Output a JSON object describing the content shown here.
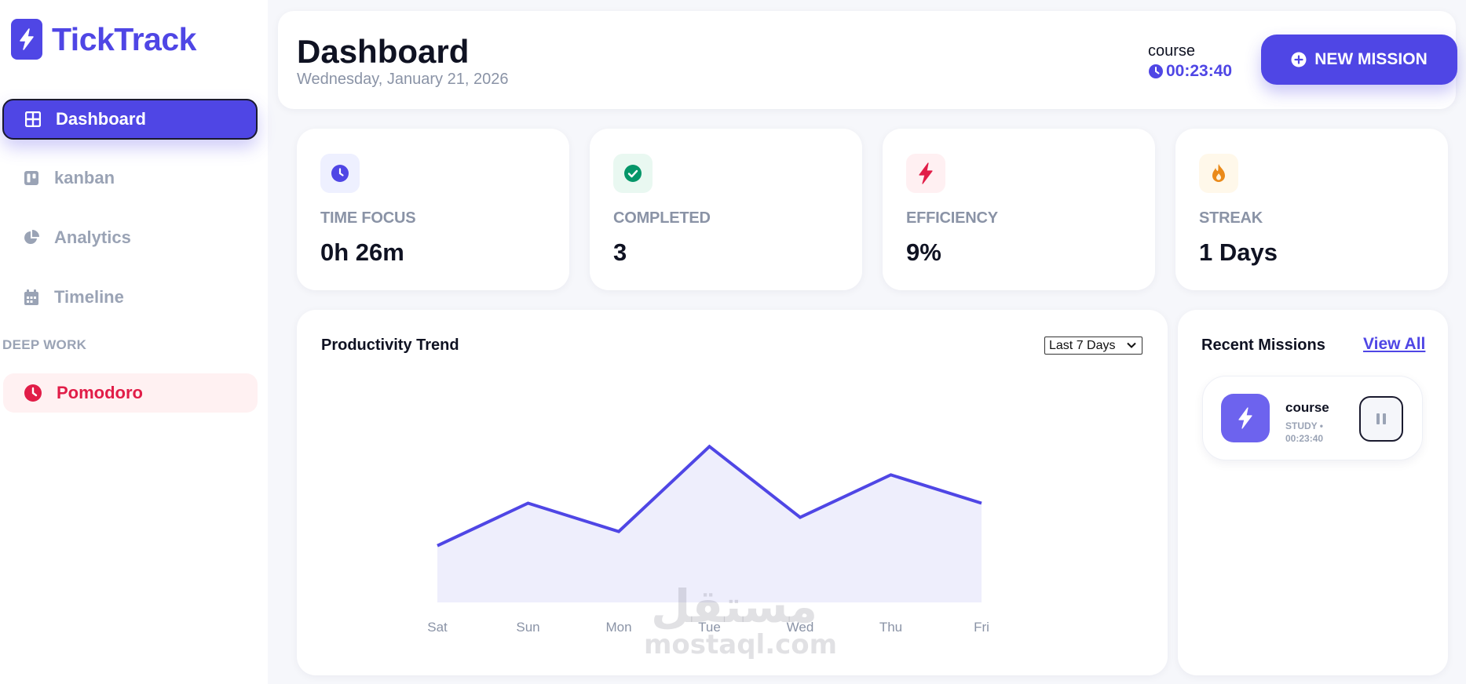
{
  "app": {
    "name": "TickTrack"
  },
  "sidebar": {
    "items": [
      {
        "label": "Dashboard",
        "icon": "grid-icon",
        "active": true
      },
      {
        "label": "kanban",
        "icon": "kanban-icon"
      },
      {
        "label": "Analytics",
        "icon": "pie-chart-icon"
      },
      {
        "label": "Timeline",
        "icon": "calendar-icon"
      }
    ],
    "section_label": "DEEP WORK",
    "pomodoro": {
      "label": "Pomodoro",
      "icon": "clock-icon",
      "color": "#e11d48"
    }
  },
  "header": {
    "title": "Dashboard",
    "date": "Wednesday, January 21, 2026",
    "active_timer": {
      "label": "course",
      "time": "00:23:40"
    },
    "new_mission_label": "NEW MISSION"
  },
  "stats": [
    {
      "label": "TIME FOCUS",
      "value": "0h 26m",
      "icon": "clock-icon",
      "color": "#4f46e5",
      "bg": "#eef0ff"
    },
    {
      "label": "COMPLETED",
      "value": "3",
      "icon": "check-circle-icon",
      "color": "#059669",
      "bg": "#e9f8f1"
    },
    {
      "label": "EFFICIENCY",
      "value": "9%",
      "icon": "lightning-icon",
      "color": "#e11d48",
      "bg": "#fff0f2"
    },
    {
      "label": "STREAK",
      "value": "1 Days",
      "icon": "flame-icon",
      "color": "#ea8a1a",
      "bg": "#fff8ea"
    }
  ],
  "chart": {
    "title": "Productivity Trend",
    "range_selected": "Last 7 Days"
  },
  "chart_data": {
    "type": "area",
    "categories": [
      "Sat",
      "Sun",
      "Mon",
      "Tue",
      "Wed",
      "Thu",
      "Fri"
    ],
    "values": [
      4,
      7,
      5,
      11,
      6,
      9,
      7
    ],
    "ylim": [
      0,
      14
    ],
    "grid": false,
    "line_color": "#4f46e5",
    "fill_color": "#eeeefc"
  },
  "missions": {
    "title": "Recent Missions",
    "view_all_label": "View All",
    "items": [
      {
        "name": "course",
        "meta": "STUDY • 00:23:40",
        "icon": "lightning-icon"
      }
    ]
  },
  "watermark": {
    "arabic": "مستقل",
    "latin": "mostaql.com"
  },
  "colors": {
    "primary": "#4f46e5",
    "muted": "#9aa3b5",
    "danger": "#e11d48"
  }
}
